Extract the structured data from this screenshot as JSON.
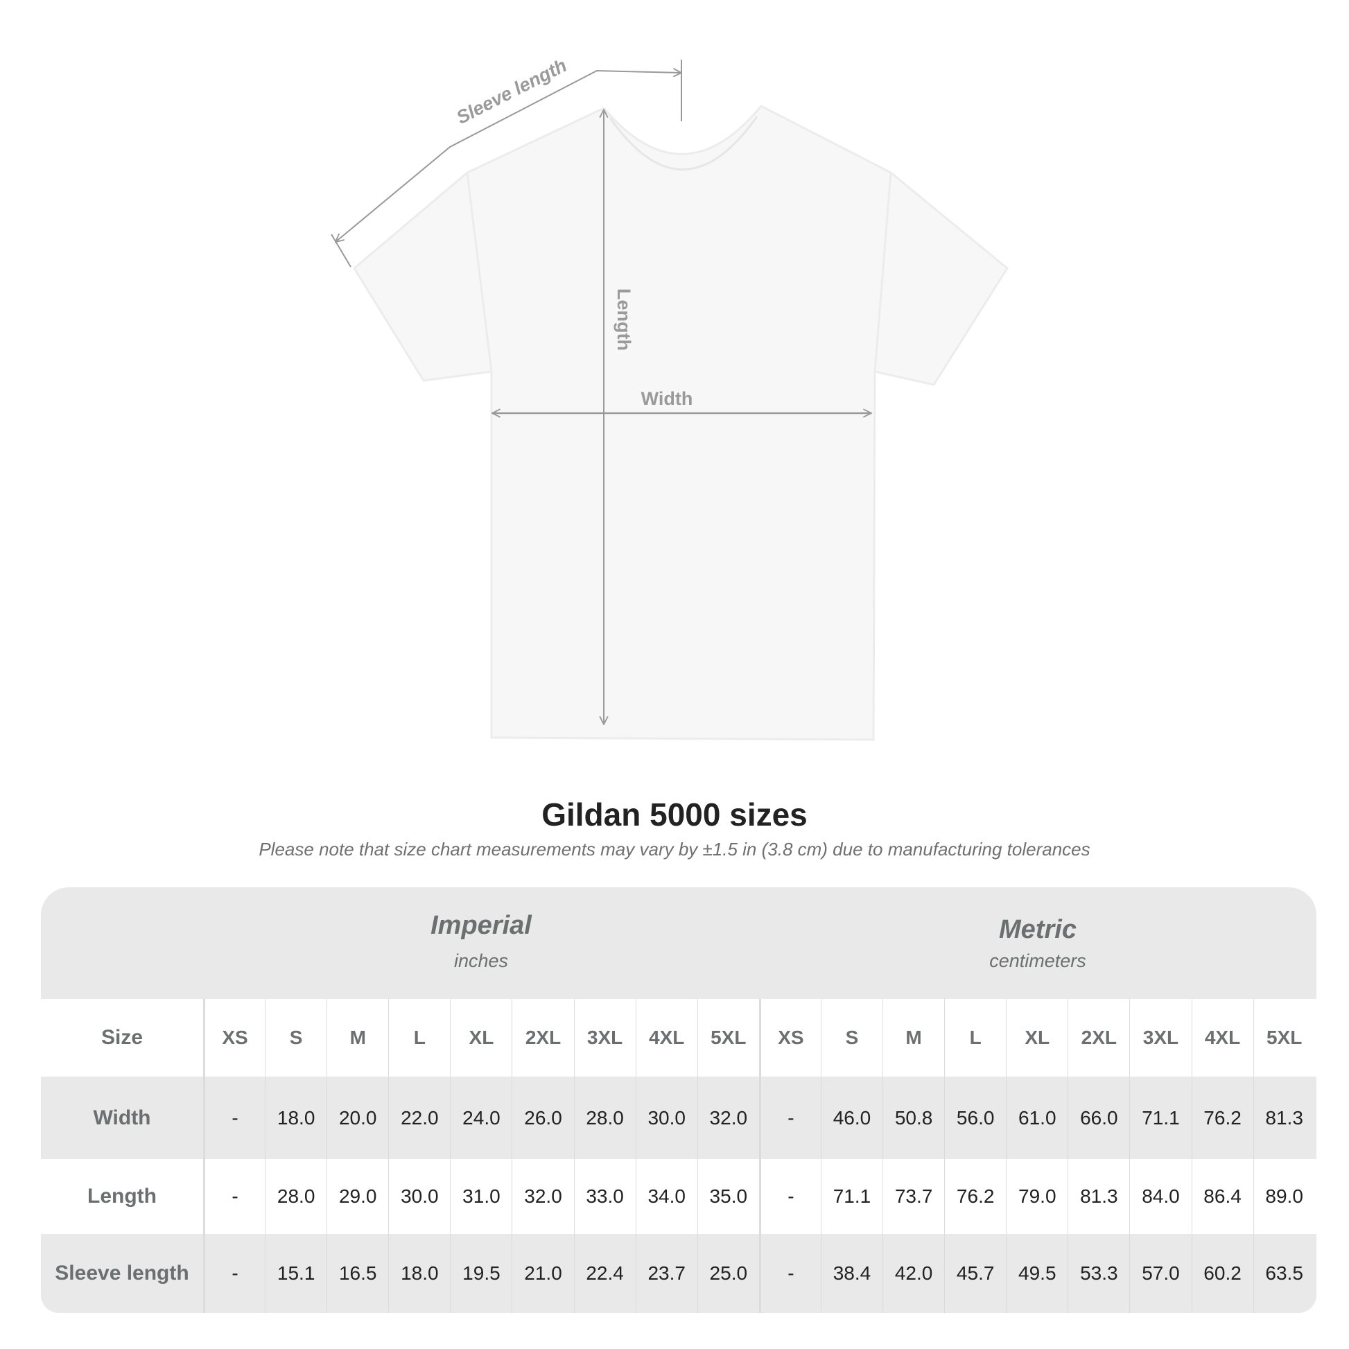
{
  "diagram": {
    "labels": {
      "sleeve": "Sleeve length",
      "length": "Length",
      "width": "Width"
    },
    "colors": {
      "shirt": "#f7f7f7",
      "lines": "#999999",
      "label_text": "#9a9a9a"
    }
  },
  "title": "Gildan 5000 sizes",
  "note": "Please note that size chart measurements may vary by ±1.5 in (3.8 cm) due to manufacturing tolerances",
  "table": {
    "imperial": {
      "title": "Imperial",
      "unit": "inches"
    },
    "metric": {
      "title": "Metric",
      "unit": "centimeters"
    },
    "size_label": "Size",
    "sizes": [
      "XS",
      "S",
      "M",
      "L",
      "XL",
      "2XL",
      "3XL",
      "4XL",
      "5XL"
    ],
    "rows": [
      {
        "label": "Width",
        "imperial": [
          "-",
          "18.0",
          "20.0",
          "22.0",
          "24.0",
          "26.0",
          "28.0",
          "30.0",
          "32.0"
        ],
        "metric": [
          "-",
          "46.0",
          "50.8",
          "56.0",
          "61.0",
          "66.0",
          "71.1",
          "76.2",
          "81.3"
        ]
      },
      {
        "label": "Length",
        "imperial": [
          "-",
          "28.0",
          "29.0",
          "30.0",
          "31.0",
          "32.0",
          "33.0",
          "34.0",
          "35.0"
        ],
        "metric": [
          "-",
          "71.1",
          "73.7",
          "76.2",
          "79.0",
          "81.3",
          "84.0",
          "86.4",
          "89.0"
        ]
      },
      {
        "label": "Sleeve length",
        "imperial": [
          "-",
          "15.1",
          "16.5",
          "18.0",
          "19.5",
          "21.0",
          "22.4",
          "23.7",
          "25.0"
        ],
        "metric": [
          "-",
          "38.4",
          "42.0",
          "45.7",
          "49.5",
          "53.3",
          "57.0",
          "60.2",
          "63.5"
        ]
      }
    ],
    "colors": {
      "band": "#e9e9e9",
      "header_text": "#6b6f6f",
      "value_text": "#222222"
    }
  }
}
